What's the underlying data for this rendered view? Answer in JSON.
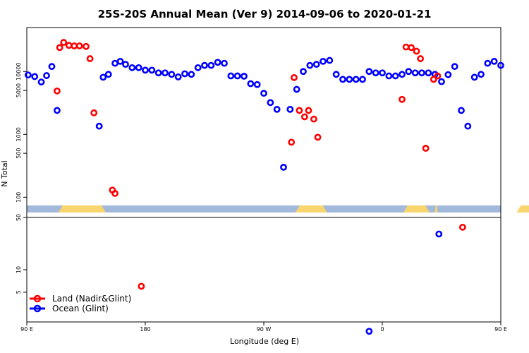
{
  "chart_data": {
    "type": "scatter",
    "title": "25S-20S Annual Mean (Ver 9)   2014-09-06 to 2020-01-21",
    "xlabel": "Longitude (deg E)",
    "ylabel": "N Total",
    "xlim": [
      90,
      450
    ],
    "x_ticks": [
      {
        "value": 90,
        "label": "90 E"
      },
      {
        "value": 180,
        "label": "180"
      },
      {
        "value": 270,
        "label": "90 W"
      },
      {
        "value": 360,
        "label": "0"
      },
      {
        "value": 450,
        "label": "90 E"
      },
      {
        "value": 540,
        "label": "180"
      }
    ],
    "top_panel": {
      "scale": "log",
      "ylim": [
        80,
        50000
      ],
      "y_ticks": [
        {
          "value": 100,
          "label": "100"
        },
        {
          "value": 500,
          "label": "500"
        },
        {
          "value": 1000,
          "label": "1000"
        },
        {
          "value": 5000,
          "label": "5000"
        },
        {
          "value": 10000,
          "label": "10000"
        }
      ]
    },
    "bottom_panel": {
      "scale": "log",
      "ylim": [
        2,
        50
      ],
      "y_ticks": [
        {
          "value": 5,
          "label": "5"
        },
        {
          "value": 10,
          "label": "10"
        },
        {
          "value": 50,
          "label": "50"
        }
      ]
    },
    "legend": {
      "position": "bottom-left",
      "entries": [
        {
          "label": "Land (Nadir&Glint)",
          "color": "#ff0000"
        },
        {
          "label": "Ocean (Glint)",
          "color": "#0000ff"
        }
      ]
    },
    "surface_strip": {
      "ocean_color": "#a2b9dc",
      "land_color": "#f8d66d",
      "land_ranges": [
        [
          114,
          150
        ],
        [
          294,
          318
        ],
        [
          376,
          396
        ],
        [
          400,
          402
        ],
        [
          462,
          500
        ]
      ]
    },
    "series": [
      {
        "name": "Land (Nadir&Glint)",
        "color": "#ff0000",
        "top": [
          [
            113,
            4900
          ],
          [
            115,
            24000
          ],
          [
            118,
            29000
          ],
          [
            122,
            26000
          ],
          [
            126,
            25500
          ],
          [
            130,
            25500
          ],
          [
            135,
            25000
          ],
          [
            138,
            16000
          ],
          [
            141,
            2200
          ],
          [
            155,
            130
          ],
          [
            157,
            115
          ],
          [
            291,
            750
          ],
          [
            293,
            8000
          ],
          [
            297,
            2400
          ],
          [
            301,
            1900
          ],
          [
            304,
            2400
          ],
          [
            308,
            1750
          ],
          [
            311,
            900
          ],
          [
            375,
            3600
          ],
          [
            378,
            24500
          ],
          [
            382,
            24000
          ],
          [
            386,
            21000
          ],
          [
            389,
            16000
          ],
          [
            393,
            600
          ],
          [
            399,
            7500
          ],
          [
            402,
            8500
          ],
          [
            467,
            4900
          ],
          [
            470,
            23000
          ],
          [
            474,
            28000
          ],
          [
            478,
            26000
          ],
          [
            482,
            25500
          ],
          [
            486,
            25500
          ],
          [
            490,
            24500
          ],
          [
            494,
            16500
          ],
          [
            496,
            2200
          ],
          [
            510,
            130
          ],
          [
            512,
            115
          ]
        ],
        "bottom": [
          [
            177,
            6
          ],
          [
            421,
            37
          ]
        ]
      },
      {
        "name": "Ocean (Glint)",
        "color": "#0000ff",
        "top": [
          [
            91,
            8800
          ],
          [
            96,
            8300
          ],
          [
            101,
            6800
          ],
          [
            105,
            8600
          ],
          [
            109,
            12000
          ],
          [
            113,
            2400
          ],
          [
            145,
            1350
          ],
          [
            148,
            8100
          ],
          [
            152,
            9000
          ],
          [
            157,
            13500
          ],
          [
            161,
            14500
          ],
          [
            165,
            13000
          ],
          [
            170,
            11500
          ],
          [
            175,
            11500
          ],
          [
            180,
            10500
          ],
          [
            185,
            10500
          ],
          [
            190,
            9500
          ],
          [
            195,
            9500
          ],
          [
            200,
            9000
          ],
          [
            205,
            8200
          ],
          [
            210,
            9200
          ],
          [
            215,
            9000
          ],
          [
            220,
            11500
          ],
          [
            225,
            12500
          ],
          [
            230,
            12500
          ],
          [
            235,
            14000
          ],
          [
            240,
            13500
          ],
          [
            245,
            8500
          ],
          [
            250,
            8500
          ],
          [
            255,
            8400
          ],
          [
            260,
            6400
          ],
          [
            265,
            6200
          ],
          [
            270,
            4500
          ],
          [
            275,
            3200
          ],
          [
            280,
            2500
          ],
          [
            285,
            300
          ],
          [
            290,
            2500
          ],
          [
            295,
            5200
          ],
          [
            300,
            10000
          ],
          [
            305,
            12500
          ],
          [
            310,
            13000
          ],
          [
            315,
            14500
          ],
          [
            320,
            15000
          ],
          [
            325,
            9000
          ],
          [
            330,
            7500
          ],
          [
            335,
            7500
          ],
          [
            340,
            7500
          ],
          [
            345,
            7500
          ],
          [
            350,
            10000
          ],
          [
            355,
            9500
          ],
          [
            360,
            9500
          ],
          [
            365,
            8500
          ],
          [
            370,
            8500
          ],
          [
            375,
            9000
          ],
          [
            380,
            10000
          ],
          [
            385,
            9500
          ],
          [
            390,
            9500
          ],
          [
            395,
            9500
          ],
          [
            400,
            9000
          ],
          [
            405,
            6900
          ],
          [
            410,
            8900
          ],
          [
            415,
            12000
          ],
          [
            420,
            2400
          ],
          [
            425,
            1350
          ],
          [
            430,
            8100
          ],
          [
            435,
            9000
          ],
          [
            440,
            13500
          ],
          [
            445,
            14500
          ],
          [
            450,
            12500
          ],
          [
            455,
            11000
          ]
        ],
        "bottom": [
          [
            350,
            1.5
          ],
          [
            403,
            30
          ]
        ]
      }
    ]
  }
}
